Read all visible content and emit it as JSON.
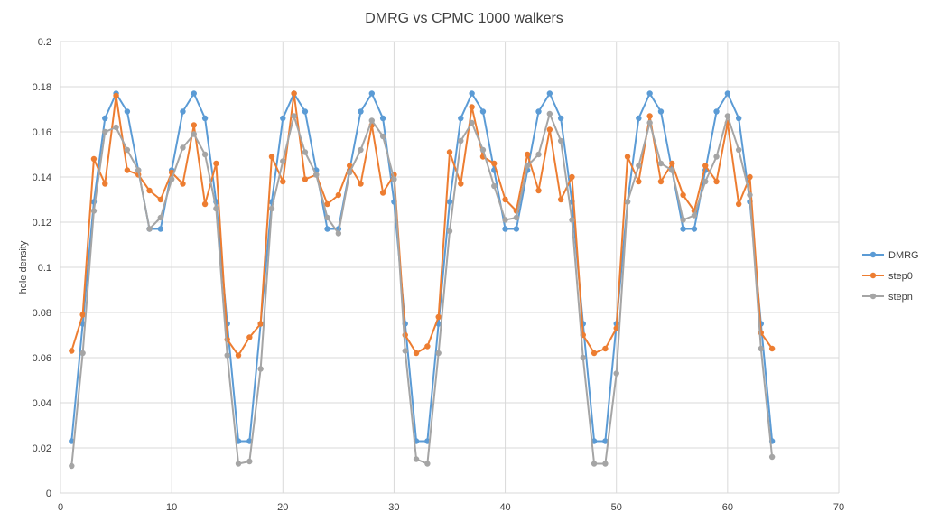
{
  "chart_data": {
    "type": "line",
    "title": "DMRG vs CPMC 1000 walkers",
    "xlabel": "",
    "ylabel": "hole density",
    "xlim": [
      0,
      70
    ],
    "ylim": [
      0,
      0.2
    ],
    "xticks": [
      "0",
      "10",
      "20",
      "30",
      "40",
      "50",
      "60",
      "70"
    ],
    "yticks": [
      "0",
      "0.02",
      "0.04",
      "0.06",
      "0.08",
      "0.1",
      "0.12",
      "0.14",
      "0.16",
      "0.18",
      "0.2"
    ],
    "grid": true,
    "legend_position": "right",
    "x": [
      1,
      2,
      3,
      4,
      5,
      6,
      7,
      8,
      9,
      10,
      11,
      12,
      13,
      14,
      15,
      16,
      17,
      18,
      19,
      20,
      21,
      22,
      23,
      24,
      25,
      26,
      27,
      28,
      29,
      30,
      31,
      32,
      33,
      34,
      35,
      36,
      37,
      38,
      39,
      40,
      41,
      42,
      43,
      44,
      45,
      46,
      47,
      48,
      49,
      50,
      51,
      52,
      53,
      54,
      55,
      56,
      57,
      58,
      59,
      60,
      61,
      62,
      63,
      64
    ],
    "series": [
      {
        "name": "DMRG",
        "color": "#5b9bd5",
        "values": [
          0.023,
          0.075,
          0.129,
          0.166,
          0.177,
          0.169,
          0.143,
          0.117,
          0.117,
          0.143,
          0.169,
          0.177,
          0.166,
          0.129,
          0.075,
          0.023,
          0.023,
          0.075,
          0.129,
          0.166,
          0.177,
          0.169,
          0.143,
          0.117,
          0.117,
          0.143,
          0.169,
          0.177,
          0.166,
          0.129,
          0.075,
          0.023,
          0.023,
          0.075,
          0.129,
          0.166,
          0.177,
          0.169,
          0.143,
          0.117,
          0.117,
          0.143,
          0.169,
          0.177,
          0.166,
          0.129,
          0.075,
          0.023,
          0.023,
          0.075,
          0.129,
          0.166,
          0.177,
          0.169,
          0.143,
          0.117,
          0.117,
          0.143,
          0.169,
          0.177,
          0.166,
          0.129,
          0.075,
          0.023
        ]
      },
      {
        "name": "step0",
        "color": "#ed7d31",
        "values": [
          0.063,
          0.079,
          0.148,
          0.137,
          0.176,
          0.143,
          0.141,
          0.134,
          0.13,
          0.142,
          0.137,
          0.163,
          0.128,
          0.146,
          0.068,
          0.061,
          0.069,
          0.075,
          0.149,
          0.138,
          0.177,
          0.139,
          0.141,
          0.128,
          0.132,
          0.145,
          0.137,
          0.163,
          0.133,
          0.141,
          0.07,
          0.062,
          0.065,
          0.078,
          0.151,
          0.137,
          0.171,
          0.149,
          0.146,
          0.13,
          0.125,
          0.15,
          0.134,
          0.161,
          0.13,
          0.14,
          0.07,
          0.062,
          0.064,
          0.073,
          0.149,
          0.138,
          0.167,
          0.138,
          0.146,
          0.132,
          0.125,
          0.145,
          0.138,
          0.164,
          0.128,
          0.14,
          0.071,
          0.064
        ]
      },
      {
        "name": "stepn",
        "color": "#a5a5a5",
        "values": [
          0.012,
          0.062,
          0.125,
          0.16,
          0.162,
          0.152,
          0.143,
          0.117,
          0.122,
          0.139,
          0.153,
          0.159,
          0.15,
          0.126,
          0.061,
          0.013,
          0.014,
          0.055,
          0.126,
          0.147,
          0.167,
          0.151,
          0.141,
          0.122,
          0.115,
          0.142,
          0.152,
          0.165,
          0.158,
          0.139,
          0.063,
          0.015,
          0.013,
          0.062,
          0.116,
          0.156,
          0.164,
          0.152,
          0.136,
          0.121,
          0.122,
          0.145,
          0.15,
          0.168,
          0.156,
          0.121,
          0.06,
          0.013,
          0.013,
          0.053,
          0.129,
          0.145,
          0.164,
          0.146,
          0.143,
          0.121,
          0.123,
          0.138,
          0.149,
          0.167,
          0.152,
          0.132,
          0.064,
          0.016
        ]
      }
    ]
  }
}
